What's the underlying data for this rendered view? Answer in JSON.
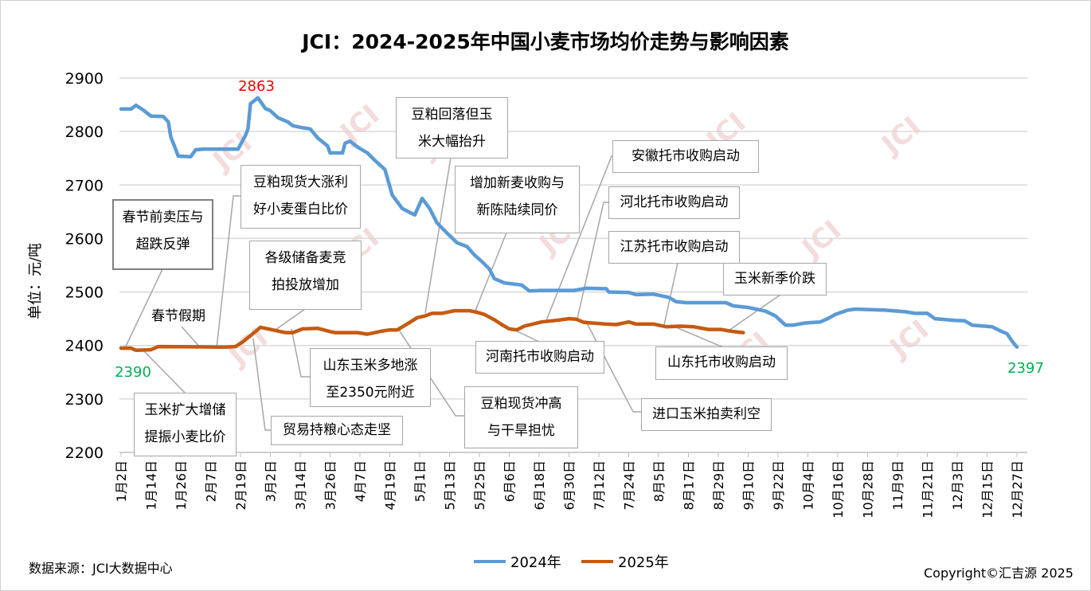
{
  "chart_data": {
    "type": "line",
    "title": "JCI：2024-2025年中国小麦市场均价走势与影响因素",
    "ylabel": "单位：元/吨",
    "xlabel": "",
    "ylim": [
      2200,
      2900
    ],
    "yticks": [
      "2200",
      "2300",
      "2400",
      "2500",
      "2600",
      "2700",
      "2800",
      "2900"
    ],
    "x_unit": "days since 1月2日",
    "xlim": [
      0,
      364
    ],
    "xtick_step_days": 12,
    "xticks": [
      "1月2日",
      "1月14日",
      "1月26日",
      "2月7日",
      "2月19日",
      "3月2日",
      "3月14日",
      "3月26日",
      "4月7日",
      "4月19日",
      "5月1日",
      "5月13日",
      "5月25日",
      "6月6日",
      "6月18日",
      "6月30日",
      "7月12日",
      "7月24日",
      "8月5日",
      "8月17日",
      "8月29日",
      "9月10日",
      "9月22日",
      "10月4日",
      "10月16日",
      "10月28日",
      "11月9日",
      "11月21日",
      "12月3日",
      "12月15日",
      "12月27日"
    ],
    "grid": true,
    "legend_position": "bottom",
    "series": [
      {
        "name": "2024年",
        "color": "#5b9bd5",
        "points": [
          [
            0,
            2842
          ],
          [
            4,
            2842
          ],
          [
            6,
            2849
          ],
          [
            9,
            2840
          ],
          [
            12,
            2829
          ],
          [
            17,
            2828
          ],
          [
            19,
            2818
          ],
          [
            20,
            2790
          ],
          [
            23,
            2754
          ],
          [
            28,
            2753
          ],
          [
            30,
            2766
          ],
          [
            33,
            2767
          ],
          [
            47,
            2767
          ],
          [
            50,
            2793
          ],
          [
            51,
            2805
          ],
          [
            52,
            2852
          ],
          [
            55,
            2863
          ],
          [
            58,
            2843
          ],
          [
            60,
            2839
          ],
          [
            63,
            2826
          ],
          [
            67,
            2818
          ],
          [
            69,
            2811
          ],
          [
            73,
            2807
          ],
          [
            76,
            2805
          ],
          [
            79,
            2788
          ],
          [
            83,
            2773
          ],
          [
            84,
            2760
          ],
          [
            89,
            2760
          ],
          [
            90,
            2778
          ],
          [
            92,
            2782
          ],
          [
            95,
            2771
          ],
          [
            99,
            2760
          ],
          [
            102,
            2746
          ],
          [
            106,
            2729
          ],
          [
            109,
            2681
          ],
          [
            113,
            2656
          ],
          [
            118,
            2644
          ],
          [
            121,
            2675
          ],
          [
            124,
            2656
          ],
          [
            127,
            2629
          ],
          [
            131,
            2610
          ],
          [
            135,
            2592
          ],
          [
            139,
            2585
          ],
          [
            142,
            2569
          ],
          [
            145,
            2557
          ],
          [
            148,
            2543
          ],
          [
            150,
            2525
          ],
          [
            154,
            2517
          ],
          [
            161,
            2513
          ],
          [
            164,
            2502
          ],
          [
            169,
            2503
          ],
          [
            182,
            2503
          ],
          [
            187,
            2507
          ],
          [
            195,
            2506
          ],
          [
            196,
            2500
          ],
          [
            204,
            2499
          ],
          [
            207,
            2495
          ],
          [
            214,
            2496
          ],
          [
            220,
            2490
          ],
          [
            223,
            2482
          ],
          [
            227,
            2480
          ],
          [
            243,
            2480
          ],
          [
            246,
            2474
          ],
          [
            252,
            2471
          ],
          [
            259,
            2464
          ],
          [
            263,
            2455
          ],
          [
            267,
            2438
          ],
          [
            270,
            2438
          ],
          [
            275,
            2442
          ],
          [
            281,
            2444
          ],
          [
            284,
            2450
          ],
          [
            287,
            2458
          ],
          [
            292,
            2466
          ],
          [
            295,
            2468
          ],
          [
            307,
            2466
          ],
          [
            315,
            2463
          ],
          [
            319,
            2460
          ],
          [
            324,
            2460
          ],
          [
            327,
            2450
          ],
          [
            335,
            2447
          ],
          [
            339,
            2446
          ],
          [
            342,
            2438
          ],
          [
            350,
            2435
          ],
          [
            353,
            2428
          ],
          [
            356,
            2422
          ],
          [
            358,
            2408
          ],
          [
            360,
            2397
          ]
        ]
      },
      {
        "name": "2025年",
        "color": "#c55a11",
        "points": [
          [
            0,
            2395
          ],
          [
            4,
            2395
          ],
          [
            6,
            2391
          ],
          [
            12,
            2392
          ],
          [
            15,
            2398
          ],
          [
            40,
            2397
          ],
          [
            42,
            2397
          ],
          [
            46,
            2398
          ],
          [
            49,
            2407
          ],
          [
            54,
            2426
          ],
          [
            56,
            2434
          ],
          [
            60,
            2430
          ],
          [
            63,
            2427
          ],
          [
            66,
            2424
          ],
          [
            69,
            2424
          ],
          [
            73,
            2431
          ],
          [
            79,
            2432
          ],
          [
            84,
            2426
          ],
          [
            86,
            2424
          ],
          [
            95,
            2424
          ],
          [
            99,
            2421
          ],
          [
            105,
            2427
          ],
          [
            108,
            2429
          ],
          [
            111,
            2429
          ],
          [
            116,
            2443
          ],
          [
            119,
            2452
          ],
          [
            122,
            2455
          ],
          [
            125,
            2460
          ],
          [
            129,
            2460
          ],
          [
            134,
            2465
          ],
          [
            140,
            2465
          ],
          [
            143,
            2462
          ],
          [
            146,
            2458
          ],
          [
            150,
            2448
          ],
          [
            153,
            2439
          ],
          [
            156,
            2431
          ],
          [
            159,
            2429
          ],
          [
            162,
            2436
          ],
          [
            169,
            2444
          ],
          [
            175,
            2447
          ],
          [
            180,
            2450
          ],
          [
            183,
            2449
          ],
          [
            186,
            2443
          ],
          [
            195,
            2440
          ],
          [
            199,
            2439
          ],
          [
            204,
            2444
          ],
          [
            207,
            2440
          ],
          [
            214,
            2440
          ],
          [
            219,
            2435
          ],
          [
            225,
            2436
          ],
          [
            230,
            2435
          ],
          [
            236,
            2430
          ],
          [
            241,
            2430
          ],
          [
            246,
            2426
          ],
          [
            250,
            2424
          ]
        ]
      }
    ],
    "data_labels": {
      "peak": "2863",
      "start": "2390",
      "end": "2397"
    },
    "label_colors": {
      "peak": "#ff0000",
      "start_end": "#00b050"
    },
    "annotations": [
      {
        "line1": "春节前卖压与",
        "line2": "超跌反弹"
      },
      {
        "line1": "春节假期"
      },
      {
        "line1": "豆粕现货大涨利",
        "line2": "好小麦蛋白比价"
      },
      {
        "line1": "各级储备麦竞",
        "line2": "拍投放增加"
      },
      {
        "line1": "豆粕回落但玉",
        "line2": "米大幅抬升"
      },
      {
        "line1": "增加新麦收购与",
        "line2": "新陈陆续同价"
      },
      {
        "line1": "安徽托市收购启动"
      },
      {
        "line1": "河北托市收购启动"
      },
      {
        "line1": "江苏托市收购启动"
      },
      {
        "line1": "玉米新季价跌"
      },
      {
        "line1": "河南托市收购启动"
      },
      {
        "line1": "山东托市收购启动"
      },
      {
        "line1": "进口玉米拍卖利空"
      },
      {
        "line1": "山东玉米多地涨",
        "line2": "至2350元附近"
      },
      {
        "line1": "豆粕现货冲高",
        "line2": "与干旱担忧"
      },
      {
        "line1": "贸易持粮心态走坚"
      },
      {
        "line1": "玉米扩大增储",
        "line2": "提振小麦比价"
      }
    ]
  },
  "footer": {
    "source": "数据来源：JCI大数据中心",
    "copyright": "Copyright©汇吉源 2025"
  },
  "watermark": "JCI"
}
